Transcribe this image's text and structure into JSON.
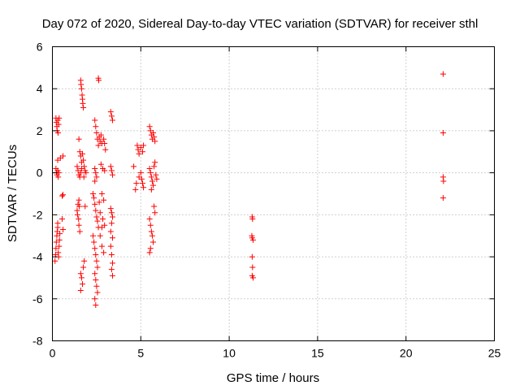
{
  "chart_data": {
    "type": "scatter",
    "title": "Day 072 of 2020, Sidereal Day-to-day VTEC variation (SDTVAR) for receiver sthl",
    "xlabel": "GPS time / hours",
    "ylabel": "SDTVAR / TECUs",
    "xlim": [
      0,
      25
    ],
    "ylim": [
      -8,
      6
    ],
    "xticks": [
      0,
      5,
      10,
      15,
      20,
      25
    ],
    "yticks": [
      -8,
      -6,
      -4,
      -2,
      0,
      2,
      4,
      6
    ],
    "xtick_labels": [
      "0",
      "5",
      "10",
      "15",
      "20",
      "25"
    ],
    "ytick_labels": [
      "-8",
      "-6",
      "-4",
      "-2",
      "0",
      "2",
      "4",
      "6"
    ],
    "grid": true,
    "marker": "+",
    "series": [
      {
        "name": "SDTVAR",
        "color": "#ff0000",
        "points": [
          [
            0.2,
            2.6
          ],
          [
            0.22,
            2.4
          ],
          [
            0.25,
            2.2
          ],
          [
            0.27,
            2.0
          ],
          [
            0.3,
            2.5
          ],
          [
            0.32,
            1.9
          ],
          [
            0.35,
            2.3
          ],
          [
            0.38,
            2.6
          ],
          [
            0.2,
            0.2
          ],
          [
            0.23,
            0.0
          ],
          [
            0.26,
            -0.1
          ],
          [
            0.3,
            0.1
          ],
          [
            0.33,
            -0.2
          ],
          [
            0.36,
            0.0
          ],
          [
            0.3,
            0.6
          ],
          [
            0.45,
            0.7
          ],
          [
            0.6,
            0.8
          ],
          [
            0.55,
            -1.1
          ],
          [
            0.6,
            -1.05
          ],
          [
            0.55,
            -2.2
          ],
          [
            0.15,
            -4.2
          ],
          [
            0.18,
            -3.9
          ],
          [
            0.2,
            -3.6
          ],
          [
            0.22,
            -3.3
          ],
          [
            0.25,
            -3.0
          ],
          [
            0.27,
            -2.8
          ],
          [
            0.3,
            -2.6
          ],
          [
            0.33,
            -3.8
          ],
          [
            0.35,
            -4.0
          ],
          [
            0.38,
            -3.5
          ],
          [
            0.4,
            -3.2
          ],
          [
            0.42,
            -2.9
          ],
          [
            0.3,
            -2.4
          ],
          [
            0.6,
            -2.7
          ],
          [
            1.4,
            0.3
          ],
          [
            1.45,
            0.1
          ],
          [
            1.5,
            -0.1
          ],
          [
            1.55,
            -0.2
          ],
          [
            1.6,
            0.0
          ],
          [
            1.65,
            0.2
          ],
          [
            1.5,
            -1.3
          ],
          [
            1.45,
            -1.5
          ],
          [
            1.4,
            -1.8
          ],
          [
            1.42,
            -2.0
          ],
          [
            1.48,
            -2.2
          ],
          [
            1.52,
            -1.6
          ],
          [
            1.5,
            -2.5
          ],
          [
            1.55,
            -2.8
          ],
          [
            1.5,
            1.6
          ],
          [
            1.55,
            1.0
          ],
          [
            1.6,
            0.8
          ],
          [
            1.65,
            0.5
          ],
          [
            1.6,
            4.4
          ],
          [
            1.62,
            4.2
          ],
          [
            1.65,
            4.0
          ],
          [
            1.68,
            3.7
          ],
          [
            1.7,
            3.5
          ],
          [
            1.72,
            3.3
          ],
          [
            1.75,
            3.1
          ],
          [
            1.7,
            0.9
          ],
          [
            1.75,
            0.6
          ],
          [
            1.8,
            0.3
          ],
          [
            1.85,
            0.1
          ],
          [
            1.78,
            -0.2
          ],
          [
            1.6,
            -4.8
          ],
          [
            1.65,
            -5.0
          ],
          [
            1.7,
            -5.3
          ],
          [
            1.6,
            -5.6
          ],
          [
            1.75,
            -4.5
          ],
          [
            1.8,
            -4.2
          ],
          [
            1.85,
            -1.6
          ],
          [
            1.9,
            0.0
          ],
          [
            2.4,
            2.5
          ],
          [
            2.45,
            2.2
          ],
          [
            2.5,
            1.9
          ],
          [
            2.55,
            1.6
          ],
          [
            2.6,
            1.3
          ],
          [
            2.65,
            1.7
          ],
          [
            2.7,
            1.5
          ],
          [
            2.75,
            1.8
          ],
          [
            2.8,
            1.4
          ],
          [
            2.4,
            0.2
          ],
          [
            2.45,
            0.0
          ],
          [
            2.5,
            -0.2
          ],
          [
            2.4,
            -0.4
          ],
          [
            2.3,
            -1.0
          ],
          [
            2.35,
            -1.2
          ],
          [
            2.4,
            -1.5
          ],
          [
            2.45,
            -1.8
          ],
          [
            2.5,
            -2.1
          ],
          [
            2.55,
            -2.3
          ],
          [
            2.6,
            -2.6
          ],
          [
            2.65,
            -1.4
          ],
          [
            2.7,
            -1.9
          ],
          [
            2.3,
            -3.0
          ],
          [
            2.35,
            -3.3
          ],
          [
            2.4,
            -3.6
          ],
          [
            2.45,
            -3.9
          ],
          [
            2.5,
            -4.2
          ],
          [
            2.55,
            -4.5
          ],
          [
            2.4,
            -4.8
          ],
          [
            2.45,
            -5.1
          ],
          [
            2.5,
            -5.4
          ],
          [
            2.55,
            -5.7
          ],
          [
            2.4,
            -6.0
          ],
          [
            2.45,
            -6.3
          ],
          [
            2.6,
            4.5
          ],
          [
            2.62,
            4.4
          ],
          [
            2.9,
            1.6
          ],
          [
            2.95,
            1.4
          ],
          [
            2.75,
            0.4
          ],
          [
            2.85,
            0.2
          ],
          [
            2.95,
            0.1
          ],
          [
            3.0,
            1.1
          ],
          [
            2.8,
            -1.0
          ],
          [
            2.9,
            -1.3
          ],
          [
            2.85,
            -2.2
          ],
          [
            2.95,
            -2.5
          ],
          [
            2.8,
            -3.5
          ],
          [
            2.9,
            -3.8
          ],
          [
            2.7,
            -3.0
          ],
          [
            2.8,
            -2.6
          ],
          [
            3.3,
            2.9
          ],
          [
            3.35,
            2.7
          ],
          [
            3.4,
            2.5
          ],
          [
            3.3,
            0.3
          ],
          [
            3.35,
            0.1
          ],
          [
            3.4,
            -0.1
          ],
          [
            3.3,
            -1.7
          ],
          [
            3.35,
            -1.9
          ],
          [
            3.4,
            -2.1
          ],
          [
            3.35,
            -2.4
          ],
          [
            3.3,
            -2.8
          ],
          [
            3.4,
            -3.1
          ],
          [
            3.3,
            -3.5
          ],
          [
            3.35,
            -3.9
          ],
          [
            3.4,
            -4.3
          ],
          [
            3.35,
            -4.6
          ],
          [
            3.4,
            -4.9
          ],
          [
            4.6,
            0.3
          ],
          [
            4.7,
            -0.8
          ],
          [
            4.75,
            -0.5
          ],
          [
            4.8,
            1.3
          ],
          [
            4.85,
            1.1
          ],
          [
            4.9,
            0.9
          ],
          [
            5.0,
            1.2
          ],
          [
            5.1,
            1.0
          ],
          [
            5.15,
            1.3
          ],
          [
            4.9,
            -0.2
          ],
          [
            5.0,
            0.0
          ],
          [
            5.05,
            -0.3
          ],
          [
            5.1,
            -0.5
          ],
          [
            5.15,
            -0.7
          ],
          [
            5.5,
            2.2
          ],
          [
            5.55,
            2.0
          ],
          [
            5.6,
            1.8
          ],
          [
            5.65,
            1.6
          ],
          [
            5.7,
            1.9
          ],
          [
            5.75,
            1.7
          ],
          [
            5.8,
            1.5
          ],
          [
            5.5,
            0.2
          ],
          [
            5.55,
            0.0
          ],
          [
            5.6,
            -0.2
          ],
          [
            5.65,
            -0.4
          ],
          [
            5.7,
            -0.6
          ],
          [
            5.75,
            0.3
          ],
          [
            5.8,
            0.5
          ],
          [
            5.85,
            -0.1
          ],
          [
            5.9,
            -0.3
          ],
          [
            5.6,
            -0.8
          ],
          [
            5.5,
            -2.2
          ],
          [
            5.55,
            -2.5
          ],
          [
            5.6,
            -2.8
          ],
          [
            5.65,
            -3.0
          ],
          [
            5.7,
            -3.3
          ],
          [
            5.75,
            -1.6
          ],
          [
            5.8,
            -1.9
          ],
          [
            5.5,
            -3.8
          ],
          [
            5.55,
            -3.6
          ],
          [
            11.3,
            -2.1
          ],
          [
            11.32,
            -2.2
          ],
          [
            11.3,
            -3.1
          ],
          [
            11.35,
            -3.2
          ],
          [
            11.28,
            -3.0
          ],
          [
            11.3,
            -4.0
          ],
          [
            11.32,
            -4.5
          ],
          [
            11.3,
            -4.9
          ],
          [
            11.35,
            -5.0
          ],
          [
            22.1,
            4.7
          ],
          [
            22.1,
            1.9
          ],
          [
            22.1,
            -0.2
          ],
          [
            22.12,
            -0.4
          ],
          [
            22.1,
            -1.2
          ]
        ]
      }
    ]
  }
}
